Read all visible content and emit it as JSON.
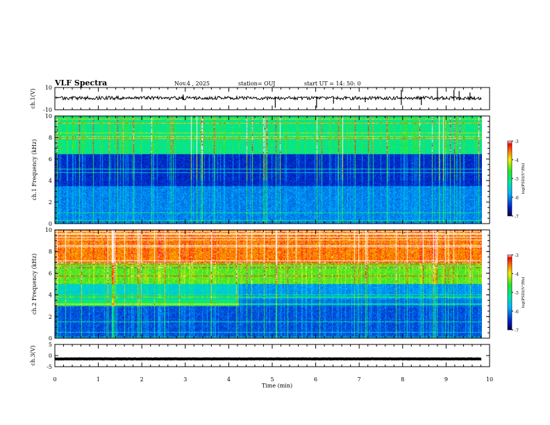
{
  "header": {
    "title": "VLF Spectra",
    "date": "Nov.4 , 2025",
    "station": "station= OUJ",
    "start": "start UT = 14: 50: 0"
  },
  "chart_data": [
    {
      "type": "line",
      "name": "ch1-waveform",
      "ylabel": "ch.1(V)",
      "ylim": [
        -10,
        10
      ],
      "y_ticks": [
        "10",
        "-10"
      ],
      "baseline": 0.5
    },
    {
      "type": "heatmap",
      "name": "ch1-spectrogram",
      "ylabel": "ch.1 Frequency (kHz)",
      "ylim": [
        0,
        10
      ],
      "y_ticks": [
        "0",
        "2",
        "4",
        "6",
        "8",
        "10"
      ],
      "colorbar": {
        "label": "log(PSD)(V²/Hz)",
        "range": [
          -7,
          -3
        ],
        "ticks": [
          "-3",
          "-4",
          "-5",
          "-6",
          "-7"
        ]
      }
    },
    {
      "type": "heatmap",
      "name": "ch2-spectrogram",
      "ylabel": "ch.2 Frequency (kHz)",
      "ylim": [
        0,
        10
      ],
      "y_ticks": [
        "0",
        "2",
        "4",
        "6",
        "8",
        "10"
      ],
      "colorbar": {
        "label": "log(PSD)(V²/Hz)",
        "range": [
          -7,
          -3
        ],
        "ticks": [
          "-3",
          "-4",
          "-5",
          "-6",
          "-7"
        ]
      }
    },
    {
      "type": "line",
      "name": "ch3-waveform",
      "ylabel": "ch.3(V)",
      "ylim": [
        -5,
        5
      ],
      "y_ticks": [
        "5",
        "0",
        "-5"
      ],
      "baseline": -1.5
    }
  ],
  "x_axis": {
    "label": "Time (min)",
    "range": [
      0,
      10
    ],
    "ticks": [
      "0",
      "1",
      "2",
      "3",
      "4",
      "5",
      "6",
      "7",
      "8",
      "9",
      "10"
    ],
    "data_end": 9.82
  },
  "colors": {
    "axis": "#000000",
    "trace": "#000000"
  }
}
